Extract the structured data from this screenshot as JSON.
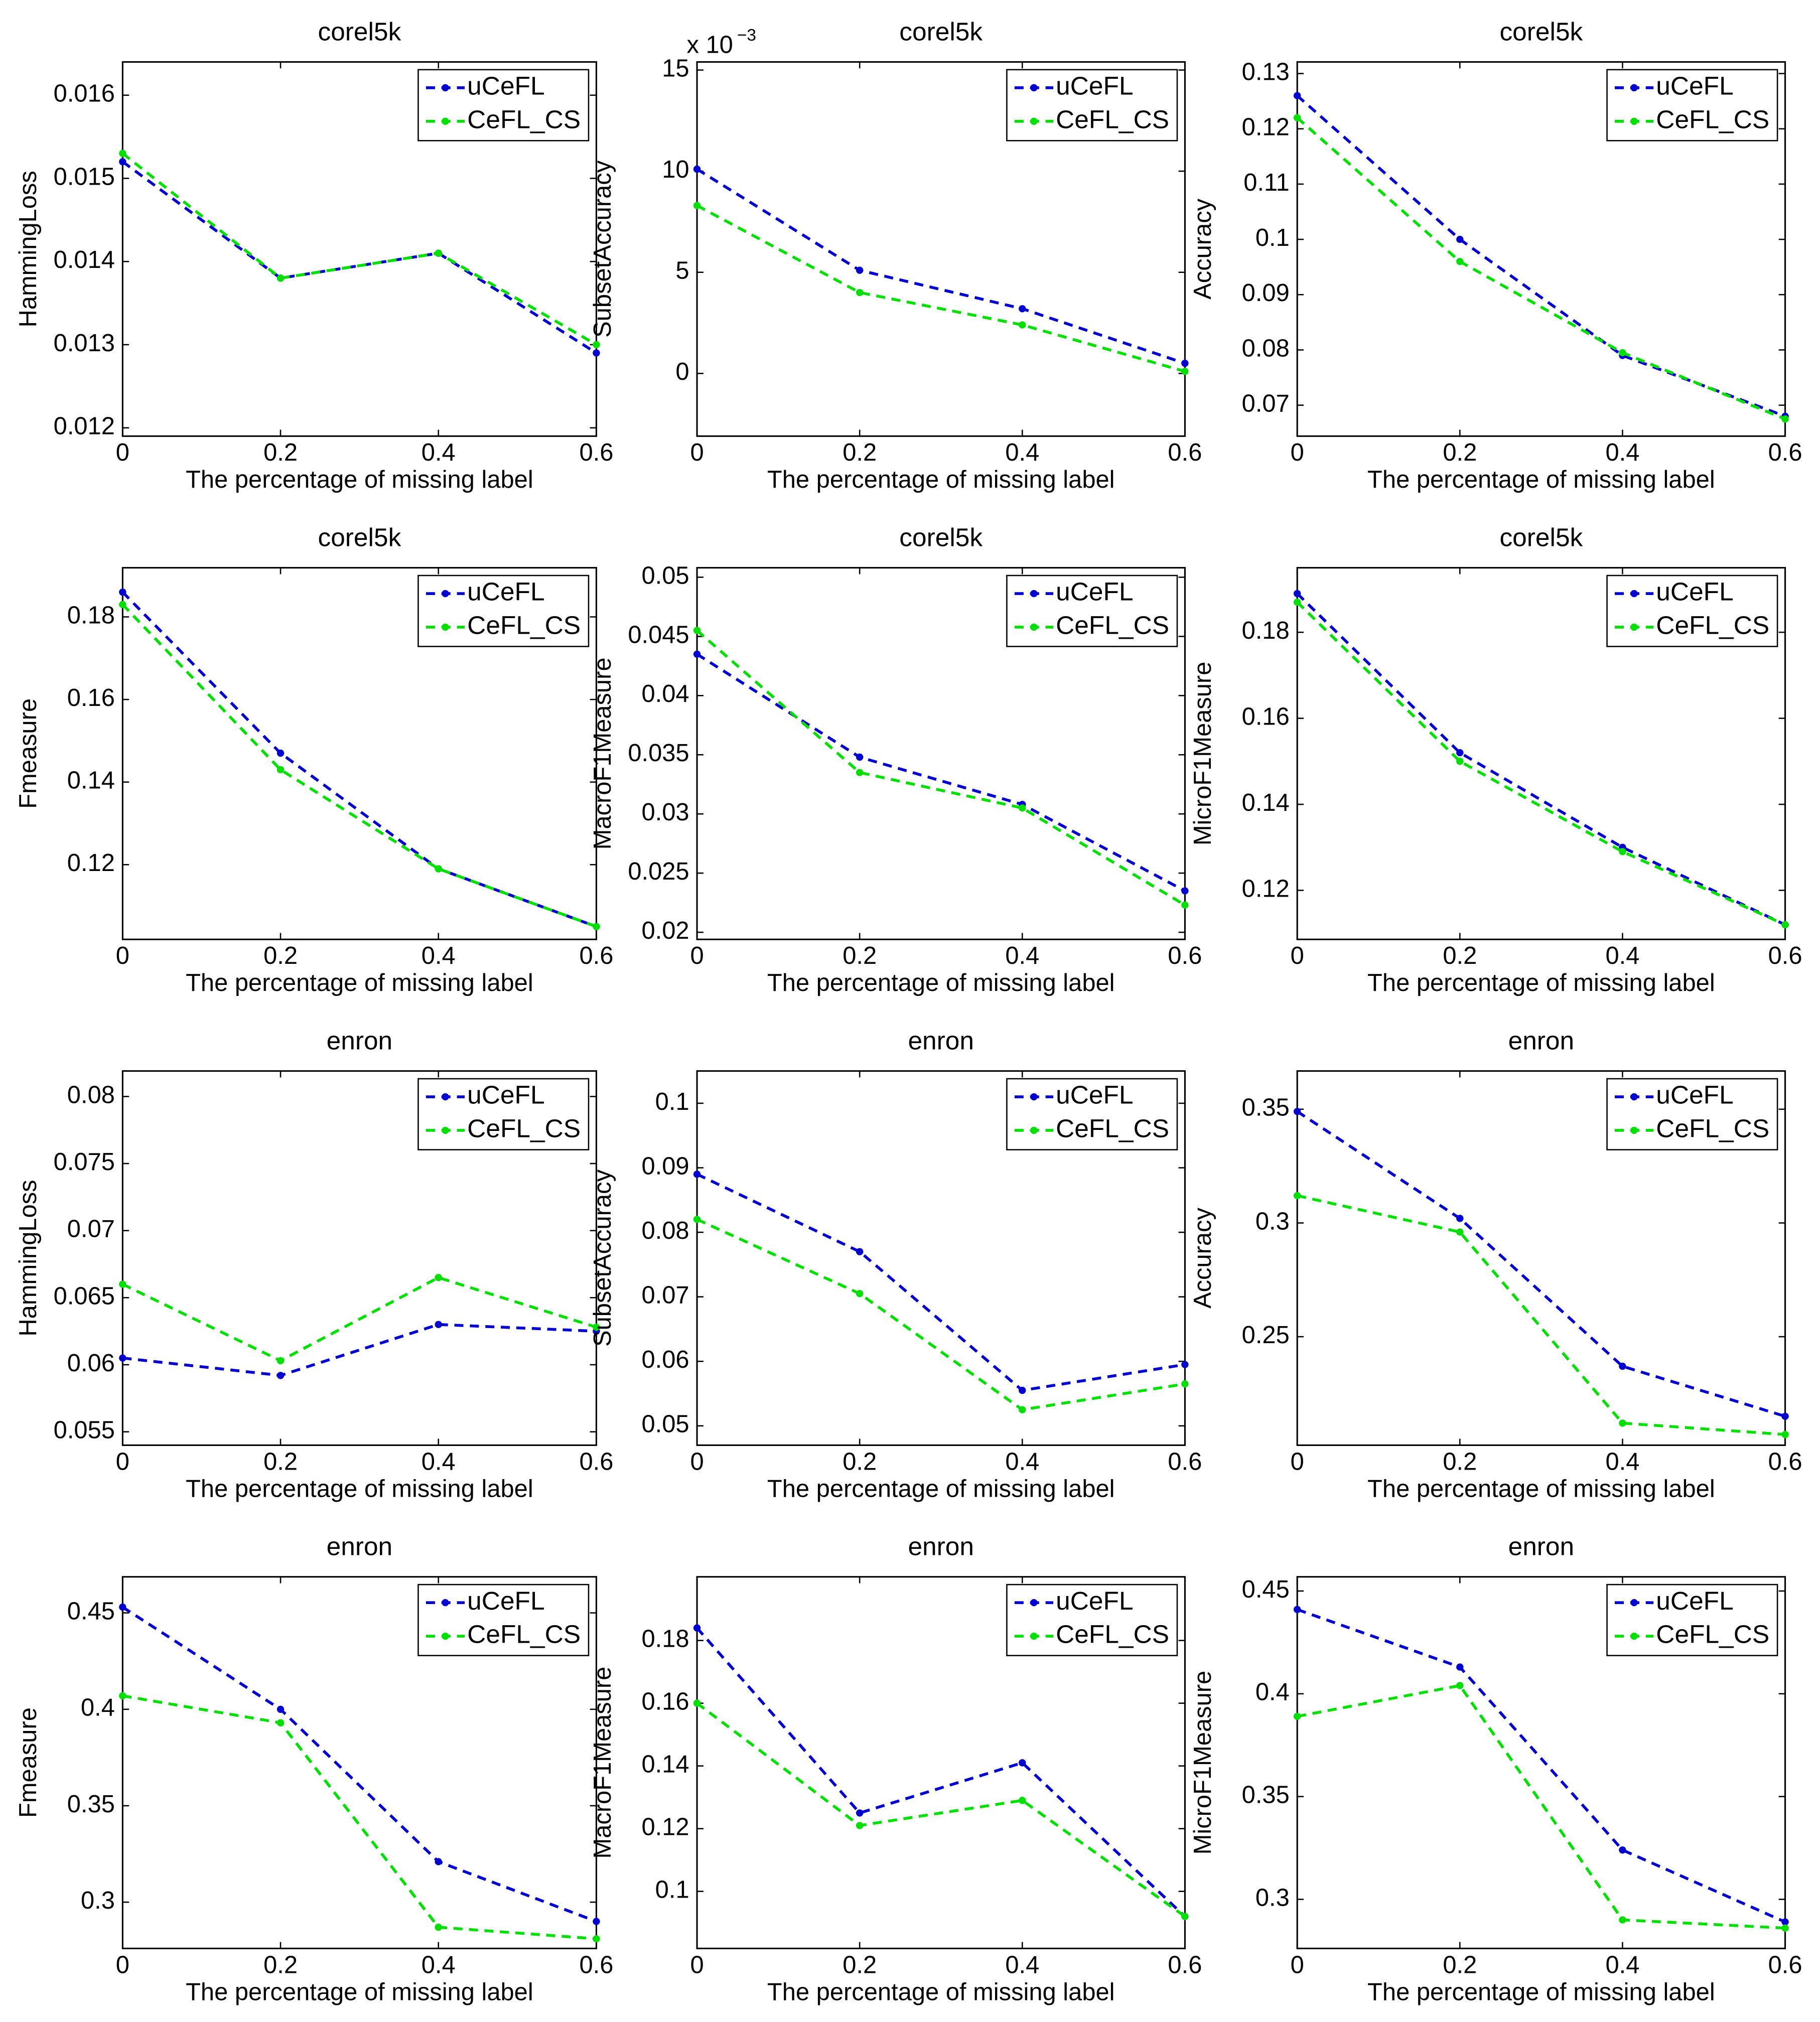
{
  "chart_data": [
    {
      "type": "line",
      "title": "corel5k",
      "xlabel": "The percentage of missing label",
      "ylabel": "HammingLoss",
      "x": [
        0,
        0.2,
        0.4,
        0.6
      ],
      "xlim": [
        0,
        0.6
      ],
      "xticks": [
        0,
        0.2,
        0.4,
        0.6
      ],
      "ylim": [
        0.0119,
        0.0164
      ],
      "yticks": [
        0.012,
        0.013,
        0.014,
        0.015,
        0.016
      ],
      "legend": "upper right",
      "series": [
        {
          "name": "uCeFL",
          "color": "#0000d0",
          "values": [
            0.0152,
            0.0138,
            0.0141,
            0.0129
          ]
        },
        {
          "name": "CeFL_CS",
          "color": "#00e000",
          "values": [
            0.0153,
            0.0138,
            0.0141,
            0.013
          ]
        }
      ]
    },
    {
      "type": "line",
      "title": "corel5k",
      "xlabel": "The percentage of missing label",
      "ylabel": "SubsetAccuracy",
      "y_scale_label": "x 10",
      "y_scale_exponent": "−3",
      "x": [
        0,
        0.2,
        0.4,
        0.6
      ],
      "xlim": [
        0,
        0.6
      ],
      "xticks": [
        0,
        0.2,
        0.4,
        0.6
      ],
      "ylim": [
        -3.1,
        15.4
      ],
      "yticks": [
        0,
        5,
        10,
        15
      ],
      "legend": "upper right",
      "series": [
        {
          "name": "uCeFL",
          "color": "#0000d0",
          "values": [
            10.1,
            5.1,
            3.2,
            0.5
          ]
        },
        {
          "name": "CeFL_CS",
          "color": "#00e000",
          "values": [
            8.3,
            4.0,
            2.4,
            0.1
          ]
        }
      ]
    },
    {
      "type": "line",
      "title": "corel5k",
      "xlabel": "The percentage of missing label",
      "ylabel": "Accuracy",
      "x": [
        0,
        0.2,
        0.4,
        0.6
      ],
      "xlim": [
        0,
        0.6
      ],
      "xticks": [
        0,
        0.2,
        0.4,
        0.6
      ],
      "ylim": [
        0.0644,
        0.1321
      ],
      "yticks": [
        0.07,
        0.08,
        0.09,
        0.1,
        0.11,
        0.12,
        0.13
      ],
      "legend": "upper right",
      "series": [
        {
          "name": "uCeFL",
          "color": "#0000d0",
          "values": [
            0.126,
            0.1,
            0.079,
            0.068
          ]
        },
        {
          "name": "CeFL_CS",
          "color": "#00e000",
          "values": [
            0.122,
            0.096,
            0.0795,
            0.0675
          ]
        }
      ]
    },
    {
      "type": "line",
      "title": "corel5k",
      "xlabel": "The percentage of missing label",
      "ylabel": "Fmeasure",
      "x": [
        0,
        0.2,
        0.4,
        0.6
      ],
      "xlim": [
        0,
        0.6
      ],
      "xticks": [
        0,
        0.2,
        0.4,
        0.6
      ],
      "ylim": [
        0.1019,
        0.1919
      ],
      "yticks": [
        0.12,
        0.14,
        0.16,
        0.18
      ],
      "legend": "upper right",
      "series": [
        {
          "name": "uCeFL",
          "color": "#0000d0",
          "values": [
            0.186,
            0.147,
            0.119,
            0.105
          ]
        },
        {
          "name": "CeFL_CS",
          "color": "#00e000",
          "values": [
            0.183,
            0.143,
            0.119,
            0.105
          ]
        }
      ]
    },
    {
      "type": "line",
      "title": "corel5k",
      "xlabel": "The percentage of missing label",
      "ylabel": "MacroF1Measure",
      "x": [
        0,
        0.2,
        0.4,
        0.6
      ],
      "xlim": [
        0,
        0.6
      ],
      "xticks": [
        0,
        0.2,
        0.4,
        0.6
      ],
      "ylim": [
        0.0194,
        0.0508
      ],
      "yticks": [
        0.02,
        0.025,
        0.03,
        0.035,
        0.04,
        0.045,
        0.05
      ],
      "legend": "upper right",
      "series": [
        {
          "name": "uCeFL",
          "color": "#0000d0",
          "values": [
            0.0435,
            0.0348,
            0.0308,
            0.0235
          ]
        },
        {
          "name": "CeFL_CS",
          "color": "#00e000",
          "values": [
            0.0455,
            0.0335,
            0.0305,
            0.0223
          ]
        }
      ]
    },
    {
      "type": "line",
      "title": "corel5k",
      "xlabel": "The percentage of missing label",
      "ylabel": "MicroF1Measure",
      "x": [
        0,
        0.2,
        0.4,
        0.6
      ],
      "xlim": [
        0,
        0.6
      ],
      "xticks": [
        0,
        0.2,
        0.4,
        0.6
      ],
      "ylim": [
        0.1086,
        0.195
      ],
      "yticks": [
        0.12,
        0.14,
        0.16,
        0.18
      ],
      "legend": "upper right",
      "series": [
        {
          "name": "uCeFL",
          "color": "#0000d0",
          "values": [
            0.189,
            0.152,
            0.13,
            0.112
          ]
        },
        {
          "name": "CeFL_CS",
          "color": "#00e000",
          "values": [
            0.187,
            0.15,
            0.129,
            0.112
          ]
        }
      ]
    },
    {
      "type": "line",
      "title": "enron",
      "xlabel": "The percentage of missing label",
      "ylabel": "HammingLoss",
      "x": [
        0,
        0.2,
        0.4,
        0.6
      ],
      "xlim": [
        0,
        0.6
      ],
      "xticks": [
        0,
        0.2,
        0.4,
        0.6
      ],
      "ylim": [
        0.054,
        0.0819
      ],
      "yticks": [
        0.055,
        0.06,
        0.065,
        0.07,
        0.075,
        0.08
      ],
      "legend": "upper right",
      "series": [
        {
          "name": "uCeFL",
          "color": "#0000d0",
          "values": [
            0.0605,
            0.0592,
            0.063,
            0.0625
          ]
        },
        {
          "name": "CeFL_CS",
          "color": "#00e000",
          "values": [
            0.066,
            0.0603,
            0.0665,
            0.0628
          ]
        }
      ]
    },
    {
      "type": "line",
      "title": "enron",
      "xlabel": "The percentage of missing label",
      "ylabel": "SubsetAccuracy",
      "x": [
        0,
        0.2,
        0.4,
        0.6
      ],
      "xlim": [
        0,
        0.6
      ],
      "xticks": [
        0,
        0.2,
        0.4,
        0.6
      ],
      "ylim": [
        0.047,
        0.105
      ],
      "yticks": [
        0.05,
        0.06,
        0.07,
        0.08,
        0.09,
        0.1
      ],
      "legend": "upper right",
      "series": [
        {
          "name": "uCeFL",
          "color": "#0000d0",
          "values": [
            0.089,
            0.077,
            0.0555,
            0.0595
          ]
        },
        {
          "name": "CeFL_CS",
          "color": "#00e000",
          "values": [
            0.082,
            0.0705,
            0.0525,
            0.0565
          ]
        }
      ]
    },
    {
      "type": "line",
      "title": "enron",
      "xlabel": "The percentage of missing label",
      "ylabel": "Accuracy",
      "x": [
        0,
        0.2,
        0.4,
        0.6
      ],
      "xlim": [
        0,
        0.6
      ],
      "xticks": [
        0,
        0.2,
        0.4,
        0.6
      ],
      "ylim": [
        0.2023,
        0.3668
      ],
      "yticks": [
        0.25,
        0.3,
        0.35
      ],
      "legend": "upper right",
      "series": [
        {
          "name": "uCeFL",
          "color": "#0000d0",
          "values": [
            0.349,
            0.302,
            0.237,
            0.215
          ]
        },
        {
          "name": "CeFL_CS",
          "color": "#00e000",
          "values": [
            0.312,
            0.296,
            0.212,
            0.207
          ]
        }
      ]
    },
    {
      "type": "line",
      "title": "enron",
      "xlabel": "The percentage of missing label",
      "ylabel": "Fmeasure",
      "x": [
        0,
        0.2,
        0.4,
        0.6
      ],
      "xlim": [
        0,
        0.6
      ],
      "xticks": [
        0,
        0.2,
        0.4,
        0.6
      ],
      "ylim": [
        0.276,
        0.4687
      ],
      "yticks": [
        0.3,
        0.35,
        0.4,
        0.45
      ],
      "legend": "upper right",
      "series": [
        {
          "name": "uCeFL",
          "color": "#0000d0",
          "values": [
            0.453,
            0.4,
            0.321,
            0.29
          ]
        },
        {
          "name": "CeFL_CS",
          "color": "#00e000",
          "values": [
            0.407,
            0.393,
            0.287,
            0.281
          ]
        }
      ]
    },
    {
      "type": "line",
      "title": "enron",
      "xlabel": "The percentage of missing label",
      "ylabel": "MacroF1Measure",
      "x": [
        0,
        0.2,
        0.4,
        0.6
      ],
      "xlim": [
        0,
        0.6
      ],
      "xticks": [
        0,
        0.2,
        0.4,
        0.6
      ],
      "ylim": [
        0.0818,
        0.2003
      ],
      "yticks": [
        0.1,
        0.12,
        0.14,
        0.16,
        0.18
      ],
      "legend": "upper right",
      "series": [
        {
          "name": "uCeFL",
          "color": "#0000d0",
          "values": [
            0.184,
            0.125,
            0.141,
            0.092
          ]
        },
        {
          "name": "CeFL_CS",
          "color": "#00e000",
          "values": [
            0.16,
            0.121,
            0.129,
            0.092
          ]
        }
      ]
    },
    {
      "type": "line",
      "title": "enron",
      "xlabel": "The percentage of missing label",
      "ylabel": "MicroF1Measure",
      "x": [
        0,
        0.2,
        0.4,
        0.6
      ],
      "xlim": [
        0,
        0.6
      ],
      "xticks": [
        0,
        0.2,
        0.4,
        0.6
      ],
      "ylim": [
        0.2761,
        0.4569
      ],
      "yticks": [
        0.3,
        0.35,
        0.4,
        0.45
      ],
      "legend": "upper right",
      "series": [
        {
          "name": "uCeFL",
          "color": "#0000d0",
          "values": [
            0.441,
            0.413,
            0.324,
            0.289
          ]
        },
        {
          "name": "CeFL_CS",
          "color": "#00e000",
          "values": [
            0.389,
            0.404,
            0.29,
            0.286
          ]
        }
      ]
    }
  ]
}
